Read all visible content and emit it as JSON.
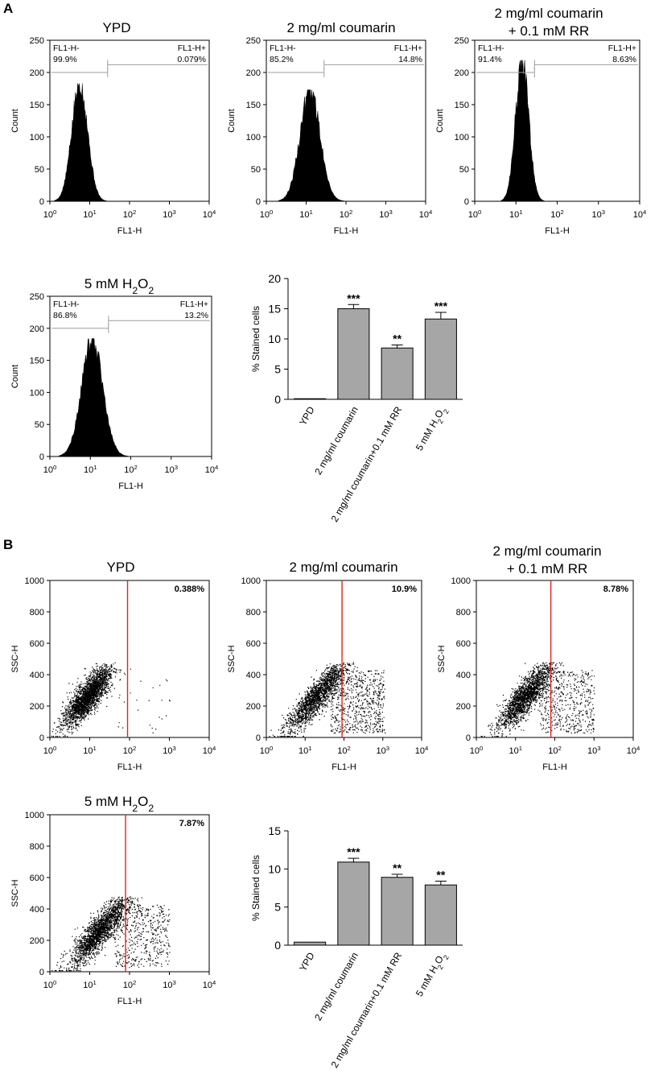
{
  "figure": {
    "panel_a_letter": "A",
    "panel_b_letter": "B"
  },
  "colors": {
    "histogram_fill": "#000000",
    "gate_line": "#9e9e9e",
    "bar_fill": "#a6a6a6",
    "gate_red": "#e3231b",
    "percent_red": "#e3231b"
  },
  "chart_data": [
    {
      "id": "A-YPD",
      "type": "histogram",
      "title": [
        "YPD"
      ],
      "xlabel": "FL1-H",
      "ylabel": "Count",
      "x_ticks": [
        "10^0",
        "10^1",
        "10^2",
        "10^3",
        "10^4"
      ],
      "y_ticks": [
        0,
        50,
        100,
        150,
        200,
        250
      ],
      "ylim": [
        0,
        250
      ],
      "xlim_log10": [
        0,
        4
      ],
      "peak_log10": 0.75,
      "peak_count": 183,
      "spread": 0.2,
      "gate_log10": 1.45,
      "neg_label": "FL1-H-",
      "neg_value": "99.9%",
      "pos_label": "FL1-H+",
      "pos_value": "0.079%"
    },
    {
      "id": "A-coumarin",
      "type": "histogram",
      "title": [
        "2 mg/ml coumarin"
      ],
      "xlabel": "FL1-H",
      "ylabel": "Count",
      "x_ticks": [
        "10^0",
        "10^1",
        "10^2",
        "10^3",
        "10^4"
      ],
      "y_ticks": [
        0,
        50,
        100,
        150,
        200,
        250
      ],
      "ylim": [
        0,
        250
      ],
      "xlim_log10": [
        0,
        4
      ],
      "peak_log10": 1.1,
      "peak_count": 173,
      "spread": 0.25,
      "gate_log10": 1.45,
      "neg_label": "FL1-H-",
      "neg_value": "85.2%",
      "pos_label": "FL1-H+",
      "pos_value": "14.8%"
    },
    {
      "id": "A-coumarin-RR",
      "type": "histogram",
      "title": [
        "2 mg/ml coumarin",
        "+ 0.1 mM RR"
      ],
      "xlabel": "FL1-H",
      "ylabel": "Count",
      "x_ticks": [
        "10^0",
        "10^1",
        "10^2",
        "10^3",
        "10^4"
      ],
      "y_ticks": [
        0,
        50,
        100,
        150,
        200,
        250
      ],
      "ylim": [
        0,
        250
      ],
      "xlim_log10": [
        0,
        4
      ],
      "peak_log10": 1.15,
      "peak_count": 219,
      "spread": 0.16,
      "gate_log10": 1.45,
      "neg_label": "FL1-H-",
      "neg_value": "91.4%",
      "pos_label": "FL1-H+",
      "pos_value": "8.63%"
    },
    {
      "id": "A-H2O2",
      "type": "histogram",
      "title": [
        "5 mM H2O2"
      ],
      "xlabel": "FL1-H",
      "ylabel": "Count",
      "x_ticks": [
        "10^0",
        "10^1",
        "10^2",
        "10^3",
        "10^4"
      ],
      "y_ticks": [
        0,
        50,
        100,
        150,
        200,
        250
      ],
      "ylim": [
        0,
        250
      ],
      "xlim_log10": [
        0,
        4
      ],
      "peak_log10": 1.05,
      "peak_count": 184,
      "spread": 0.26,
      "gate_log10": 1.45,
      "neg_label": "FL1-H-",
      "neg_value": "86.8%",
      "pos_label": "FL1-H+",
      "pos_value": "13.2%"
    },
    {
      "id": "A-bar",
      "type": "bar",
      "categories": [
        "YPD",
        "2 mg/ml coumarin",
        "2 mg/ml coumarin+0.1 mM RR",
        "5 mM H2O2"
      ],
      "values": [
        0.1,
        15.0,
        8.5,
        13.3
      ],
      "errors": [
        0,
        0.7,
        0.5,
        1.1
      ],
      "significance": [
        "",
        "***",
        "**",
        "***"
      ],
      "ylabel": "% Stained cells",
      "ylim": [
        0,
        20
      ],
      "y_ticks": [
        0,
        5,
        10,
        15,
        20
      ]
    },
    {
      "id": "B-YPD",
      "type": "scatter",
      "title": [
        "YPD"
      ],
      "xlabel": "FL1-H",
      "ylabel": "SSC-H",
      "x_ticks": [
        "10^0",
        "10^1",
        "10^2",
        "10^3",
        "10^4"
      ],
      "y_ticks": [
        0,
        200,
        400,
        600,
        800,
        1000
      ],
      "ylim": [
        0,
        1000
      ],
      "xlim_log10": [
        0,
        4
      ],
      "gate_log10": 1.95,
      "percent": "0.388%",
      "cloud_center_log10": 0.95,
      "cloud_spread_log10": 0.3,
      "tail_fraction": 0.004,
      "seed": 11
    },
    {
      "id": "B-coumarin",
      "type": "scatter",
      "title": [
        "2 mg/ml coumarin"
      ],
      "xlabel": "FL1-H",
      "ylabel": "SSC-H",
      "x_ticks": [
        "10^0",
        "10^1",
        "10^2",
        "10^3",
        "10^4"
      ],
      "y_ticks": [
        0,
        200,
        400,
        600,
        800,
        1000
      ],
      "ylim": [
        0,
        1000
      ],
      "xlim_log10": [
        0,
        4
      ],
      "gate_log10": 1.95,
      "percent": "10.9%",
      "cloud_center_log10": 1.3,
      "cloud_spread_log10": 0.4,
      "tail_fraction": 0.11,
      "seed": 23
    },
    {
      "id": "B-coumarin-RR",
      "type": "scatter",
      "title": [
        "2 mg/ml coumarin",
        "+ 0.1 mM RR"
      ],
      "xlabel": "FL1-H",
      "ylabel": "SSC-H",
      "x_ticks": [
        "10^0",
        "10^1",
        "10^2",
        "10^3",
        "10^4"
      ],
      "y_ticks": [
        0,
        200,
        400,
        600,
        800,
        1000
      ],
      "ylim": [
        0,
        1000
      ],
      "xlim_log10": [
        0,
        4
      ],
      "gate_log10": 1.9,
      "percent": "8.78%",
      "cloud_center_log10": 1.25,
      "cloud_spread_log10": 0.35,
      "tail_fraction": 0.09,
      "seed": 37
    },
    {
      "id": "B-H2O2",
      "type": "scatter",
      "title": [
        "5 mM H2O2"
      ],
      "xlabel": "FL1-H",
      "ylabel": "SSC-H",
      "x_ticks": [
        "10^0",
        "10^1",
        "10^2",
        "10^3",
        "10^4"
      ],
      "y_ticks": [
        0,
        200,
        400,
        600,
        800,
        1000
      ],
      "ylim": [
        0,
        1000
      ],
      "xlim_log10": [
        0,
        4
      ],
      "gate_log10": 1.9,
      "percent": "7.87%",
      "cloud_center_log10": 1.25,
      "cloud_spread_log10": 0.38,
      "tail_fraction": 0.08,
      "seed": 53
    },
    {
      "id": "B-bar",
      "type": "bar",
      "categories": [
        "YPD",
        "2 mg/ml coumarin",
        "2 mg/ml coumarin+0.1 mM RR",
        "5 mM H2O2"
      ],
      "values": [
        0.4,
        10.9,
        8.9,
        7.9
      ],
      "errors": [
        0,
        0.5,
        0.4,
        0.5
      ],
      "significance": [
        "",
        "***",
        "**",
        "**"
      ],
      "ylabel": "% Stained cells",
      "ylim": [
        0,
        15
      ],
      "y_ticks": [
        0,
        5,
        10,
        15
      ]
    }
  ]
}
